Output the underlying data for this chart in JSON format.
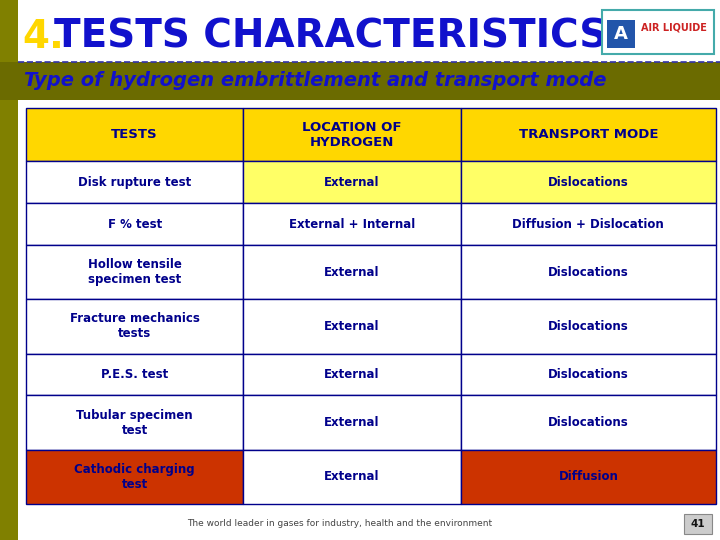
{
  "title_number": "4.",
  "title_text": "TESTS CHARACTERISTICS",
  "subtitle": "Type of hydrogen embrittlement and transport mode",
  "title_color": "#1111CC",
  "title_number_color": "#FFD700",
  "subtitle_color": "#1111CC",
  "subtitle_bg": "#6B6B00",
  "header_bg": "#FFD700",
  "header_text_color": "#00008B",
  "col_headers": [
    "TESTS",
    "LOCATION OF\nHYDROGEN",
    "TRANSPORT MODE"
  ],
  "rows": [
    {
      "tests": "Disk rupture test",
      "location": "External",
      "transport": "Dislocations",
      "tests_bg": "#FFFFFF",
      "location_bg": "#FFFF66",
      "transport_bg": "#FFFF66",
      "tests_color": "#00008B",
      "location_color": "#00008B",
      "transport_color": "#00008B",
      "tests_bold": true,
      "location_bold": true,
      "transport_bold": true
    },
    {
      "tests": "F % test",
      "location": "External + Internal",
      "transport": "Diffusion + Dislocation",
      "tests_bg": "#FFFFFF",
      "location_bg": "#FFFFFF",
      "transport_bg": "#FFFFFF",
      "tests_color": "#00008B",
      "location_color": "#00008B",
      "transport_color": "#00008B",
      "tests_bold": true,
      "location_bold": true,
      "transport_bold": true
    },
    {
      "tests": "Hollow tensile\nspecimen test",
      "location": "External",
      "transport": "Dislocations",
      "tests_bg": "#FFFFFF",
      "location_bg": "#FFFFFF",
      "transport_bg": "#FFFFFF",
      "tests_color": "#00008B",
      "location_color": "#00008B",
      "transport_color": "#00008B",
      "tests_bold": true,
      "location_bold": true,
      "transport_bold": true
    },
    {
      "tests": "Fracture mechanics\ntests",
      "location": "External",
      "transport": "Dislocations",
      "tests_bg": "#FFFFFF",
      "location_bg": "#FFFFFF",
      "transport_bg": "#FFFFFF",
      "tests_color": "#00008B",
      "location_color": "#00008B",
      "transport_color": "#00008B",
      "tests_bold": true,
      "location_bold": true,
      "transport_bold": true
    },
    {
      "tests": "P.E.S. test",
      "location": "External",
      "transport": "Dislocations",
      "tests_bg": "#FFFFFF",
      "location_bg": "#FFFFFF",
      "transport_bg": "#FFFFFF",
      "tests_color": "#00008B",
      "location_color": "#00008B",
      "transport_color": "#00008B",
      "tests_bold": true,
      "location_bold": true,
      "transport_bold": true
    },
    {
      "tests": "Tubular specimen\ntest",
      "location": "External",
      "transport": "Dislocations",
      "tests_bg": "#FFFFFF",
      "location_bg": "#FFFFFF",
      "transport_bg": "#FFFFFF",
      "tests_color": "#00008B",
      "location_color": "#00008B",
      "transport_color": "#00008B",
      "tests_bold": true,
      "location_bold": true,
      "transport_bold": true
    },
    {
      "tests": "Cathodic charging\ntest",
      "location": "External",
      "transport": "Diffusion",
      "tests_bg": "#CC3300",
      "location_bg": "#FFFFFF",
      "transport_bg": "#CC3300",
      "tests_color": "#00008B",
      "location_color": "#00008B",
      "transport_color": "#00008B",
      "tests_bold": true,
      "location_bold": true,
      "transport_bold": true
    }
  ],
  "footer_text": "The world leader in gases for industry, health and the environment",
  "footer_page": "41",
  "bg_color": "#FFFFFF",
  "left_bar_color": "#808000",
  "left_bar_thin_color": "#B8B800"
}
